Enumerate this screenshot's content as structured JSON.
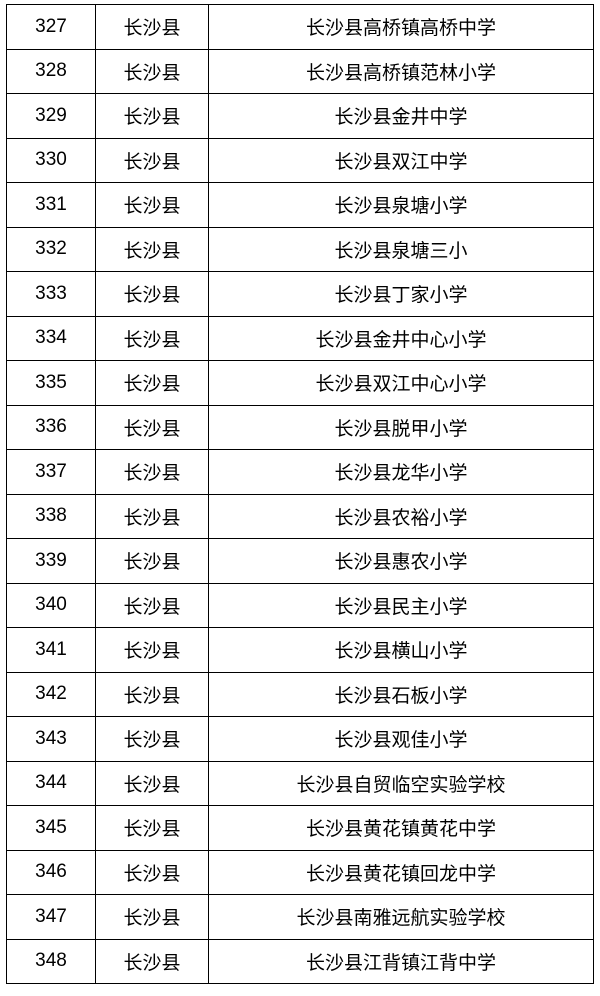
{
  "rows": [
    {
      "no": "327",
      "county": "长沙县",
      "school": "长沙县高桥镇高桥中学"
    },
    {
      "no": "328",
      "county": "长沙县",
      "school": "长沙县高桥镇范林小学"
    },
    {
      "no": "329",
      "county": "长沙县",
      "school": "长沙县金井中学"
    },
    {
      "no": "330",
      "county": "长沙县",
      "school": "长沙县双江中学"
    },
    {
      "no": "331",
      "county": "长沙县",
      "school": "长沙县泉塘小学"
    },
    {
      "no": "332",
      "county": "长沙县",
      "school": "长沙县泉塘三小"
    },
    {
      "no": "333",
      "county": "长沙县",
      "school": "长沙县丁家小学"
    },
    {
      "no": "334",
      "county": "长沙县",
      "school": "长沙县金井中心小学"
    },
    {
      "no": "335",
      "county": "长沙县",
      "school": "长沙县双江中心小学"
    },
    {
      "no": "336",
      "county": "长沙县",
      "school": "长沙县脱甲小学"
    },
    {
      "no": "337",
      "county": "长沙县",
      "school": "长沙县龙华小学"
    },
    {
      "no": "338",
      "county": "长沙县",
      "school": "长沙县农裕小学"
    },
    {
      "no": "339",
      "county": "长沙县",
      "school": "长沙县惠农小学"
    },
    {
      "no": "340",
      "county": "长沙县",
      "school": "长沙县民主小学"
    },
    {
      "no": "341",
      "county": "长沙县",
      "school": "长沙县横山小学"
    },
    {
      "no": "342",
      "county": "长沙县",
      "school": "长沙县石板小学"
    },
    {
      "no": "343",
      "county": "长沙县",
      "school": "长沙县观佳小学"
    },
    {
      "no": "344",
      "county": "长沙县",
      "school": "长沙县自贸临空实验学校"
    },
    {
      "no": "345",
      "county": "长沙县",
      "school": "长沙县黄花镇黄花中学"
    },
    {
      "no": "346",
      "county": "长沙县",
      "school": "长沙县黄花镇回龙中学"
    },
    {
      "no": "347",
      "county": "长沙县",
      "school": "长沙县南雅远航实验学校"
    },
    {
      "no": "348",
      "county": "长沙县",
      "school": "长沙县江背镇江背中学"
    }
  ]
}
